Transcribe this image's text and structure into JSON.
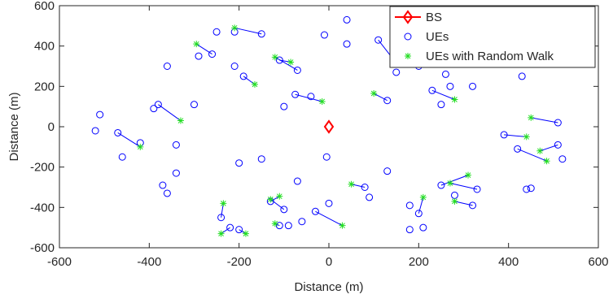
{
  "chart_data": {
    "type": "scatter",
    "xlabel": "Distance (m)",
    "ylabel": "Distance (m)",
    "xlim": [
      -600,
      600
    ],
    "xticks": [
      -600,
      -400,
      -200,
      0,
      200,
      400,
      600
    ],
    "ylim": [
      -600,
      600
    ],
    "yticks": [
      -600,
      -400,
      -200,
      0,
      200,
      400,
      600
    ],
    "grid": false,
    "legend": "upper right",
    "series": [
      {
        "name": "BS",
        "color": "#ff0000",
        "marker": "diamond",
        "x": [
          0
        ],
        "y": [
          0
        ]
      },
      {
        "name": "UEs",
        "color": "#0000ff",
        "marker": "circle",
        "x": [
          -470,
          -380,
          -190,
          -150,
          -70,
          -110,
          -260,
          -75,
          130,
          110,
          230,
          510,
          390,
          420,
          510,
          -240,
          -220,
          -130,
          -110,
          -30,
          80,
          200,
          250,
          330,
          320,
          -200,
          -100,
          -520,
          -510,
          -460,
          -390,
          -360,
          -290,
          -300,
          -420,
          -370,
          -360,
          -340,
          -340,
          -250,
          -210,
          -210,
          -200,
          -90,
          -70,
          -60,
          -150,
          -100,
          -10,
          40,
          40,
          -5,
          0,
          90,
          180,
          180,
          130,
          210,
          150,
          180,
          200,
          260,
          270,
          320,
          430,
          440,
          450,
          520,
          -40,
          250,
          280
        ],
        "y": [
          -30,
          110,
          250,
          460,
          280,
          330,
          360,
          160,
          130,
          430,
          180,
          20,
          -40,
          -110,
          -90,
          -450,
          -500,
          -370,
          -490,
          -420,
          -300,
          -430,
          -290,
          -310,
          -390,
          -510,
          -410,
          -20,
          60,
          -150,
          90,
          300,
          350,
          110,
          -80,
          -290,
          -330,
          -90,
          -230,
          470,
          470,
          300,
          -180,
          -490,
          -270,
          -470,
          -160,
          100,
          455,
          530,
          410,
          -150,
          -380,
          -350,
          -390,
          -510,
          -220,
          -500,
          270,
          340,
          300,
          260,
          200,
          200,
          250,
          -310,
          -305,
          -160,
          150,
          110,
          -340
        ]
      },
      {
        "name": "UEs with Random Walk",
        "color": "#22dd22",
        "marker": "star",
        "x": [
          -420,
          -330,
          -165,
          -210,
          -120,
          -85,
          -295,
          -15,
          100,
          145,
          280,
          450,
          440,
          485,
          470,
          -235,
          -240,
          -110,
          -120,
          30,
          50,
          210,
          310,
          270,
          280,
          -185,
          -130
        ],
        "y": [
          -100,
          30,
          210,
          490,
          345,
          320,
          410,
          125,
          165,
          330,
          135,
          45,
          -50,
          -170,
          -120,
          -380,
          -530,
          -345,
          -480,
          -490,
          -285,
          -350,
          -240,
          -280,
          -370,
          -530,
          -360
        ]
      }
    ]
  }
}
